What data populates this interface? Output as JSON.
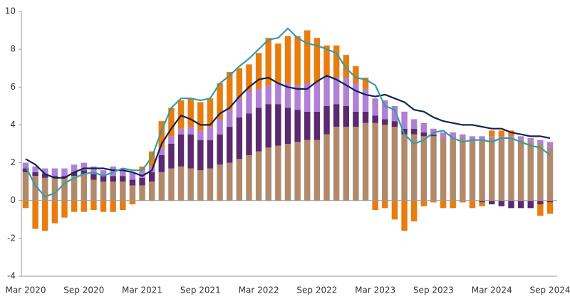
{
  "chart_data": {
    "type": "bar",
    "stacked": true,
    "categories": [
      "Mar 2020",
      null,
      null,
      null,
      null,
      null,
      "Sep 2020",
      null,
      null,
      null,
      null,
      null,
      "Mar 2021",
      null,
      null,
      null,
      null,
      null,
      "Sep 2021",
      null,
      null,
      null,
      null,
      null,
      "Mar 2022",
      null,
      null,
      null,
      null,
      null,
      "Sep 2022",
      null,
      null,
      null,
      null,
      null,
      "Mar 2023",
      null,
      null,
      null,
      null,
      null,
      "Sep 2023",
      null,
      null,
      null,
      null,
      null,
      "Mar 2024",
      null,
      null,
      null,
      null,
      null,
      "Sep 2024"
    ],
    "ylim": [
      -4,
      10
    ],
    "yticks": [
      -4,
      -2,
      0,
      2,
      4,
      6,
      8,
      10
    ],
    "series": [
      {
        "type": "bar",
        "color": "#b08a6b",
        "values": [
          1.5,
          1.3,
          1.2,
          1.2,
          1.2,
          1.3,
          1.4,
          1.1,
          1.0,
          1.0,
          1.0,
          0.8,
          0.8,
          1.0,
          1.5,
          1.7,
          1.8,
          1.7,
          1.6,
          1.7,
          1.9,
          2.0,
          2.2,
          2.4,
          2.6,
          2.8,
          2.9,
          3.0,
          3.1,
          3.2,
          3.2,
          3.5,
          3.9,
          3.9,
          3.9,
          4.1,
          4.1,
          4.0,
          3.9,
          3.5,
          3.5,
          3.4,
          3.4,
          3.3,
          3.3,
          3.3,
          3.2,
          3.2,
          3.3,
          3.3,
          3.3,
          3.2,
          3.1,
          3.0,
          2.8
        ]
      },
      {
        "type": "bar",
        "color": "#5b2a6e",
        "values": [
          0.2,
          0.2,
          0.2,
          0.1,
          0.1,
          0.2,
          0.2,
          0.3,
          0.3,
          0.3,
          0.3,
          0.3,
          0.4,
          0.5,
          0.9,
          1.3,
          1.7,
          1.8,
          1.6,
          1.5,
          1.6,
          1.9,
          2.2,
          2.2,
          2.3,
          2.3,
          2.2,
          1.9,
          1.7,
          1.5,
          1.5,
          1.5,
          1.2,
          1.1,
          0.8,
          0.6,
          0.4,
          0.3,
          0.3,
          0.3,
          0.3,
          0.2,
          0.1,
          0.0,
          0.0,
          0.0,
          0.0,
          -0.1,
          -0.2,
          -0.3,
          -0.4,
          -0.4,
          -0.4,
          -0.2,
          -0.1
        ]
      },
      {
        "type": "bar",
        "color": "#b07fd6",
        "values": [
          0.3,
          0.3,
          0.3,
          0.4,
          0.4,
          0.4,
          0.4,
          0.4,
          0.3,
          0.5,
          0.4,
          0.4,
          0.4,
          0.3,
          0.4,
          0.4,
          0.3,
          0.4,
          0.5,
          0.7,
          0.8,
          0.9,
          1.0,
          1.2,
          1.0,
          1.0,
          1.1,
          1.3,
          1.3,
          1.5,
          1.5,
          1.6,
          1.4,
          1.5,
          1.5,
          1.2,
          0.9,
          1.0,
          0.8,
          0.9,
          0.5,
          0.5,
          0.3,
          0.3,
          0.3,
          0.2,
          0.2,
          0.2,
          0.1,
          0.1,
          0.1,
          0.2,
          0.2,
          0.2,
          0.3
        ]
      },
      {
        "type": "bar",
        "color": "#e87c0e",
        "values": [
          -0.4,
          -1.5,
          -1.6,
          -1.2,
          -0.9,
          -0.6,
          -0.6,
          -0.5,
          -0.6,
          -0.6,
          -0.5,
          -0.2,
          0.2,
          0.8,
          1.4,
          1.5,
          1.5,
          1.5,
          1.5,
          1.5,
          1.9,
          2.0,
          1.6,
          1.4,
          1.9,
          2.5,
          2.1,
          2.5,
          2.6,
          2.8,
          2.4,
          1.6,
          1.7,
          1.2,
          0.9,
          0.6,
          -0.5,
          -0.4,
          -1.0,
          -1.6,
          -1.1,
          -0.3,
          -0.1,
          -0.4,
          -0.4,
          -0.1,
          -0.4,
          -0.2,
          0.3,
          0.3,
          0.3,
          0.0,
          0.0,
          -0.6,
          -0.6
        ]
      },
      {
        "type": "line",
        "color": "#0f2550",
        "values": [
          2.2,
          1.9,
          1.4,
          1.2,
          1.2,
          1.5,
          1.7,
          1.7,
          1.7,
          1.6,
          1.6,
          1.5,
          1.3,
          1.6,
          3.0,
          3.8,
          4.5,
          4.3,
          4.0,
          4.0,
          4.6,
          4.9,
          5.5,
          6.0,
          6.4,
          6.5,
          6.2,
          6.0,
          5.9,
          5.9,
          6.3,
          6.6,
          6.4,
          6.1,
          5.8,
          5.6,
          5.5,
          5.6,
          5.4,
          5.2,
          4.8,
          4.7,
          4.4,
          4.2,
          4.1,
          4.0,
          4.0,
          3.9,
          3.8,
          3.8,
          3.6,
          3.5,
          3.4,
          3.4,
          3.3
        ]
      },
      {
        "type": "line",
        "color": "#3a9aa8",
        "values": [
          1.8,
          0.8,
          0.2,
          0.4,
          0.9,
          1.2,
          1.4,
          1.5,
          1.3,
          1.5,
          1.7,
          1.6,
          1.6,
          2.3,
          3.7,
          4.9,
          5.4,
          5.4,
          5.3,
          5.4,
          6.2,
          6.6,
          7.1,
          7.5,
          8.0,
          8.5,
          8.6,
          9.1,
          8.6,
          8.3,
          8.2,
          8.0,
          7.8,
          7.0,
          6.5,
          6.4,
          6.1,
          5.0,
          4.8,
          3.5,
          3.0,
          3.2,
          3.6,
          3.7,
          3.3,
          3.1,
          3.2,
          3.2,
          3.1,
          3.3,
          3.3,
          3.1,
          2.9,
          2.8,
          2.4
        ]
      }
    ]
  }
}
